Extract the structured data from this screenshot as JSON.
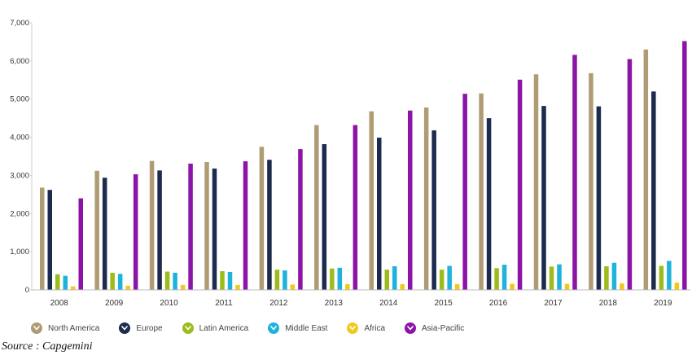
{
  "chart_data": {
    "type": "bar",
    "title": "",
    "xlabel": "",
    "ylabel": "",
    "ylim": [
      0,
      7000
    ],
    "y_ticks": [
      "0",
      "1,000",
      "2,000",
      "3,000",
      "4,000",
      "5,000",
      "6,000",
      "7,000"
    ],
    "y_tick_values": [
      0,
      1000,
      2000,
      3000,
      4000,
      5000,
      6000,
      7000
    ],
    "grid": false,
    "legend_position": "bottom-left",
    "categories": [
      "2008",
      "2009",
      "2010",
      "2011",
      "2012",
      "2013",
      "2014",
      "2015",
      "2016",
      "2017",
      "2018",
      "2019"
    ],
    "series": [
      {
        "name": "North America",
        "color": "#b09c74",
        "values": [
          2680,
          3120,
          3380,
          3350,
          3750,
          4320,
          4680,
          4780,
          5150,
          5650,
          5680,
          6300
        ]
      },
      {
        "name": "Europe",
        "color": "#1c2b4e",
        "values": [
          2620,
          2940,
          3130,
          3180,
          3410,
          3820,
          3990,
          4180,
          4500,
          4820,
          4810,
          5200
        ]
      },
      {
        "name": "Latin America",
        "color": "#9cbb1c",
        "values": [
          410,
          450,
          480,
          490,
          530,
          560,
          530,
          530,
          570,
          610,
          620,
          630
        ]
      },
      {
        "name": "Middle East",
        "color": "#1eb2dc",
        "values": [
          370,
          420,
          450,
          470,
          510,
          580,
          620,
          630,
          660,
          670,
          710,
          760
        ]
      },
      {
        "name": "Africa",
        "color": "#f2c81c",
        "values": [
          90,
          110,
          130,
          130,
          140,
          150,
          150,
          150,
          160,
          160,
          170,
          190
        ]
      },
      {
        "name": "Asia-Pacific",
        "color": "#8c14a6",
        "values": [
          2400,
          3030,
          3310,
          3370,
          3690,
          4320,
          4700,
          5140,
          5510,
          6160,
          6050,
          6520
        ]
      }
    ]
  },
  "source_text": "Source : Capgemini",
  "icons": {
    "legend_marker": "chevron-down-icon"
  }
}
